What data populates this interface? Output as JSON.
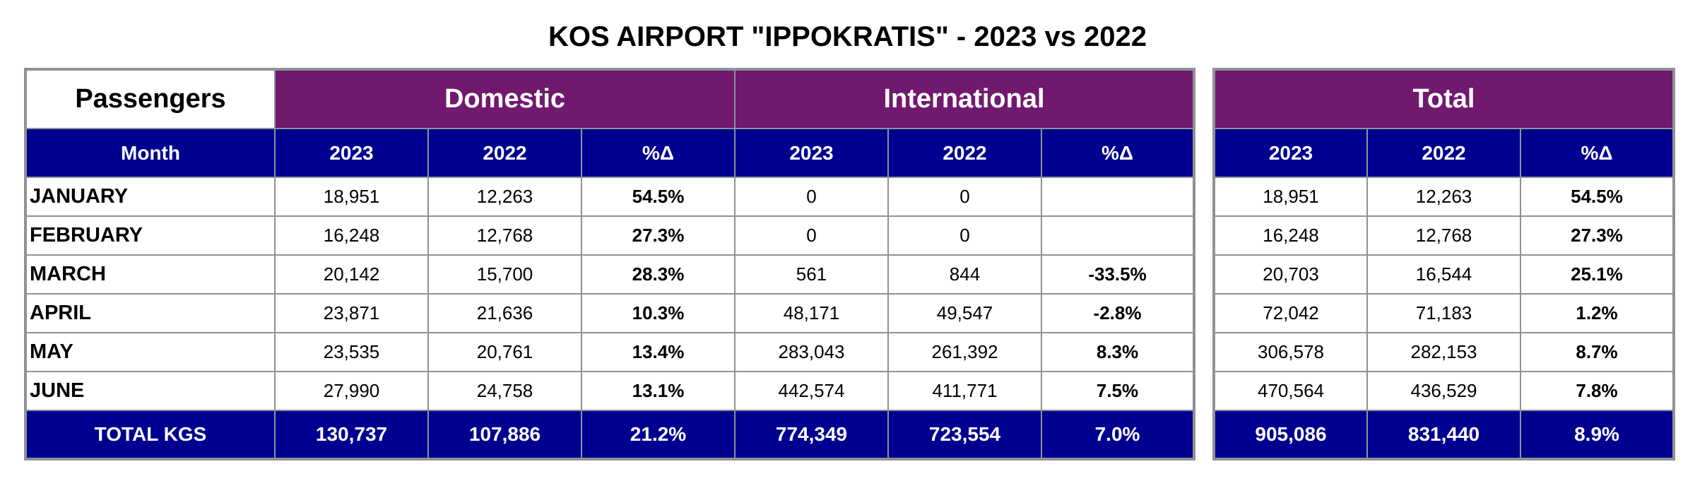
{
  "title": "KOS AIRPORT \"IPPOKRATIS\" - 2023 vs 2022",
  "colors": {
    "group_header": "#71196e",
    "sub_header": "#000090",
    "border": "#8e9296"
  },
  "headers": {
    "passengers": "Passengers",
    "domestic": "Domestic",
    "international": "International",
    "total": "Total",
    "month": "Month",
    "y2023": "2023",
    "y2022": "2022",
    "pct": "%Δ"
  },
  "rows": [
    {
      "month": "JANUARY",
      "dom_2023": "18,951",
      "dom_2022": "12,263",
      "dom_pct": "54.5%",
      "int_2023": "0",
      "int_2022": "0",
      "int_pct": "",
      "tot_2023": "18,951",
      "tot_2022": "12,263",
      "tot_pct": "54.5%"
    },
    {
      "month": "FEBRUARY",
      "dom_2023": "16,248",
      "dom_2022": "12,768",
      "dom_pct": "27.3%",
      "int_2023": "0",
      "int_2022": "0",
      "int_pct": "",
      "tot_2023": "16,248",
      "tot_2022": "12,768",
      "tot_pct": "27.3%"
    },
    {
      "month": "MARCH",
      "dom_2023": "20,142",
      "dom_2022": "15,700",
      "dom_pct": "28.3%",
      "int_2023": "561",
      "int_2022": "844",
      "int_pct": "-33.5%",
      "tot_2023": "20,703",
      "tot_2022": "16,544",
      "tot_pct": "25.1%"
    },
    {
      "month": "APRIL",
      "dom_2023": "23,871",
      "dom_2022": "21,636",
      "dom_pct": "10.3%",
      "int_2023": "48,171",
      "int_2022": "49,547",
      "int_pct": "-2.8%",
      "tot_2023": "72,042",
      "tot_2022": "71,183",
      "tot_pct": "1.2%"
    },
    {
      "month": "MAY",
      "dom_2023": "23,535",
      "dom_2022": "20,761",
      "dom_pct": "13.4%",
      "int_2023": "283,043",
      "int_2022": "261,392",
      "int_pct": "8.3%",
      "tot_2023": "306,578",
      "tot_2022": "282,153",
      "tot_pct": "8.7%"
    },
    {
      "month": "JUNE",
      "dom_2023": "27,990",
      "dom_2022": "24,758",
      "dom_pct": "13.1%",
      "int_2023": "442,574",
      "int_2022": "411,771",
      "int_pct": "7.5%",
      "tot_2023": "470,564",
      "tot_2022": "436,529",
      "tot_pct": "7.8%"
    }
  ],
  "totals": {
    "label": "TOTAL KGS",
    "dom_2023": "130,737",
    "dom_2022": "107,886",
    "dom_pct": "21.2%",
    "int_2023": "774,349",
    "int_2022": "723,554",
    "int_pct": "7.0%",
    "tot_2023": "905,086",
    "tot_2022": "831,440",
    "tot_pct": "8.9%"
  }
}
